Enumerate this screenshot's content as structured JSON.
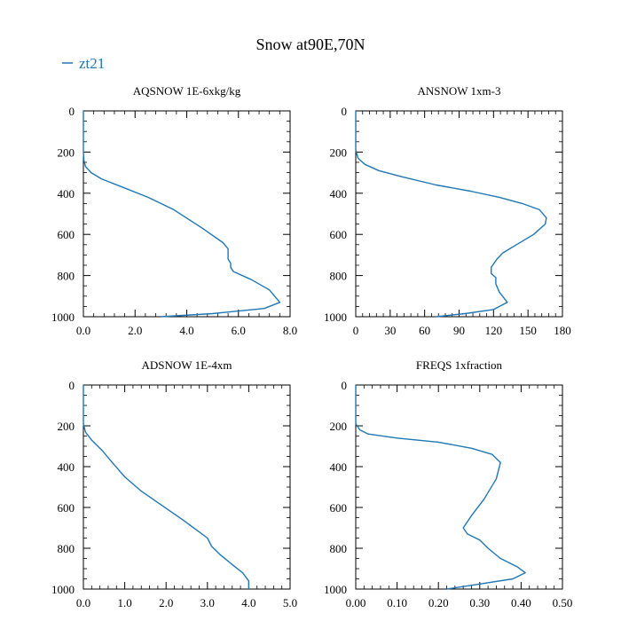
{
  "figure": {
    "title": "Snow at90E,70N",
    "legend": {
      "label": "zt21",
      "color": "#1f77b4"
    }
  },
  "chart_data": [
    {
      "type": "line",
      "title": "AQSNOW  1E-6xkg/kg",
      "xlim": [
        0,
        8
      ],
      "ylim": [
        1000,
        0
      ],
      "xticks": [
        "0.0",
        "2.0",
        "4.0",
        "6.0",
        "8.0"
      ],
      "xtick_values": [
        0,
        2,
        4,
        6,
        8
      ],
      "yticks": [
        "0",
        "200",
        "400",
        "600",
        "800",
        "1000"
      ],
      "ytick_values": [
        0,
        200,
        400,
        600,
        800,
        1000
      ],
      "series": [
        {
          "name": "zt21",
          "x": [
            0,
            0,
            0.02,
            0.08,
            0.3,
            0.7,
            1.5,
            2.5,
            3.5,
            4.6,
            5.4,
            5.6,
            5.6,
            5.7,
            5.7,
            5.8,
            6.5,
            7.2,
            7.6,
            7.0,
            5.0,
            3.0
          ],
          "y": [
            0,
            200,
            240,
            270,
            300,
            330,
            370,
            420,
            480,
            570,
            640,
            670,
            720,
            740,
            760,
            780,
            820,
            870,
            930,
            960,
            985,
            1000
          ]
        }
      ]
    },
    {
      "type": "line",
      "title": "ANSNOW  1xm-3",
      "xlim": [
        0,
        180
      ],
      "ylim": [
        1000,
        0
      ],
      "xticks": [
        "0",
        "30",
        "60",
        "90",
        "120",
        "150",
        "180"
      ],
      "xtick_values": [
        0,
        30,
        60,
        90,
        120,
        150,
        180
      ],
      "yticks": [
        "0",
        "200",
        "400",
        "600",
        "800",
        "1000"
      ],
      "ytick_values": [
        0,
        200,
        400,
        600,
        800,
        1000
      ],
      "series": [
        {
          "name": "zt21",
          "x": [
            0,
            0,
            2,
            8,
            20,
            40,
            70,
            100,
            125,
            145,
            160,
            166,
            165,
            155,
            140,
            128,
            123,
            118,
            118,
            122,
            122,
            125,
            132,
            120,
            95,
            70
          ],
          "y": [
            0,
            190,
            230,
            260,
            290,
            320,
            360,
            390,
            420,
            450,
            480,
            520,
            550,
            600,
            650,
            690,
            720,
            760,
            790,
            810,
            840,
            880,
            930,
            965,
            985,
            1000
          ]
        }
      ]
    },
    {
      "type": "line",
      "title": "ADSNOW  1E-4xm",
      "xlim": [
        0,
        5
      ],
      "ylim": [
        1000,
        0
      ],
      "xticks": [
        "0.0",
        "1.0",
        "2.0",
        "3.0",
        "4.0",
        "5.0"
      ],
      "xtick_values": [
        0,
        1,
        2,
        3,
        4,
        5
      ],
      "yticks": [
        "0",
        "200",
        "400",
        "600",
        "800",
        "1000"
      ],
      "ytick_values": [
        0,
        200,
        400,
        600,
        800,
        1000
      ],
      "series": [
        {
          "name": "zt21",
          "x": [
            0,
            0,
            0.05,
            0.2,
            0.45,
            0.7,
            1.0,
            1.4,
            1.9,
            2.4,
            2.8,
            3.0,
            3.1,
            3.3,
            3.6,
            3.85,
            4.0,
            4.0
          ],
          "y": [
            0,
            190,
            230,
            270,
            320,
            380,
            450,
            520,
            590,
            660,
            720,
            750,
            790,
            830,
            880,
            920,
            960,
            1000
          ]
        }
      ]
    },
    {
      "type": "line",
      "title": "FREQS  1xfraction",
      "xlim": [
        0,
        0.5
      ],
      "ylim": [
        1000,
        0
      ],
      "xticks": [
        "0.00",
        "0.10",
        "0.20",
        "0.30",
        "0.40",
        "0.50"
      ],
      "xtick_values": [
        0,
        0.1,
        0.2,
        0.3,
        0.4,
        0.5
      ],
      "yticks": [
        "0",
        "200",
        "400",
        "600",
        "800",
        "1000"
      ],
      "ytick_values": [
        0,
        200,
        400,
        600,
        800,
        1000
      ],
      "series": [
        {
          "name": "zt21",
          "x": [
            0,
            0,
            0.01,
            0.03,
            0.1,
            0.2,
            0.28,
            0.33,
            0.35,
            0.34,
            0.31,
            0.28,
            0.26,
            0.27,
            0.3,
            0.32,
            0.35,
            0.39,
            0.41,
            0.38,
            0.3,
            0.22
          ],
          "y": [
            0,
            190,
            220,
            240,
            260,
            280,
            310,
            340,
            380,
            460,
            560,
            640,
            700,
            730,
            760,
            800,
            850,
            890,
            920,
            950,
            975,
            1000
          ]
        }
      ]
    }
  ]
}
